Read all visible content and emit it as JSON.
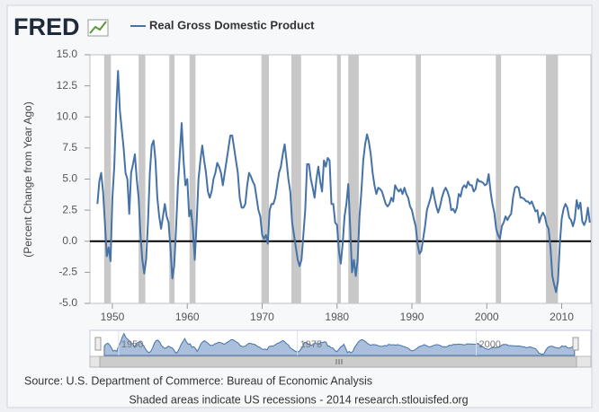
{
  "header": {
    "logo": "FRED"
  },
  "chart_data": {
    "type": "line",
    "ylabel": "(Percent Change from Year Ago)",
    "xlim": [
      1947,
      2013.9
    ],
    "ylim": [
      -5,
      15
    ],
    "yticks": [
      {
        "value": 15,
        "label": "15.0"
      },
      {
        "value": 12.5,
        "label": "12.5"
      },
      {
        "value": 10,
        "label": "10.0"
      },
      {
        "value": 7.5,
        "label": "7.5"
      },
      {
        "value": 5,
        "label": "5.0"
      },
      {
        "value": 2.5,
        "label": "2.5"
      },
      {
        "value": 0,
        "label": "0.0"
      },
      {
        "value": -2.5,
        "label": "-2.5"
      },
      {
        "value": -5,
        "label": "-5.0"
      }
    ],
    "xticks": [
      1950,
      1960,
      1970,
      1980,
      1990,
      2000,
      2010
    ],
    "grid": false,
    "recessions": [
      [
        1948.9,
        1949.8
      ],
      [
        1953.5,
        1954.4
      ],
      [
        1957.6,
        1958.3
      ],
      [
        1960.3,
        1961.1
      ],
      [
        1969.9,
        1970.9
      ],
      [
        1973.9,
        1975.2
      ],
      [
        1980.0,
        1980.5
      ],
      [
        1981.5,
        1982.9
      ],
      [
        1990.5,
        1991.2
      ],
      [
        2001.2,
        2001.9
      ],
      [
        2007.9,
        2009.5
      ]
    ],
    "x": [
      1948,
      1948.25,
      1948.5,
      1948.75,
      1949,
      1949.25,
      1949.5,
      1949.75,
      1950,
      1950.25,
      1950.5,
      1950.75,
      1951,
      1951.25,
      1951.5,
      1951.75,
      1952,
      1952.25,
      1952.5,
      1952.75,
      1953,
      1953.25,
      1953.5,
      1953.75,
      1954,
      1954.25,
      1954.5,
      1954.75,
      1955,
      1955.25,
      1955.5,
      1955.75,
      1956,
      1956.25,
      1956.5,
      1956.75,
      1957,
      1957.25,
      1957.5,
      1957.75,
      1958,
      1958.25,
      1958.5,
      1958.75,
      1959,
      1959.25,
      1959.5,
      1959.75,
      1960,
      1960.25,
      1960.5,
      1960.75,
      1961,
      1961.25,
      1961.5,
      1961.75,
      1962,
      1962.25,
      1962.5,
      1962.75,
      1963,
      1963.25,
      1963.5,
      1963.75,
      1964,
      1964.25,
      1964.5,
      1964.75,
      1965,
      1965.25,
      1965.5,
      1965.75,
      1966,
      1966.25,
      1966.5,
      1966.75,
      1967,
      1967.25,
      1967.5,
      1967.75,
      1968,
      1968.25,
      1968.5,
      1968.75,
      1969,
      1969.25,
      1969.5,
      1969.75,
      1970,
      1970.25,
      1970.5,
      1970.75,
      1971,
      1971.25,
      1971.5,
      1971.75,
      1972,
      1972.25,
      1972.5,
      1972.75,
      1973,
      1973.25,
      1973.5,
      1973.75,
      1974,
      1974.25,
      1974.5,
      1974.75,
      1975,
      1975.25,
      1975.5,
      1975.75,
      1976,
      1976.25,
      1976.5,
      1976.75,
      1977,
      1977.25,
      1977.5,
      1977.75,
      1978,
      1978.25,
      1978.5,
      1978.75,
      1979,
      1979.25,
      1979.5,
      1979.75,
      1980,
      1980.25,
      1980.5,
      1980.75,
      1981,
      1981.25,
      1981.5,
      1981.75,
      1982,
      1982.25,
      1982.5,
      1982.75,
      1983,
      1983.25,
      1983.5,
      1983.75,
      1984,
      1984.25,
      1984.5,
      1984.75,
      1985,
      1985.25,
      1985.5,
      1985.75,
      1986,
      1986.25,
      1986.5,
      1986.75,
      1987,
      1987.25,
      1987.5,
      1987.75,
      1988,
      1988.25,
      1988.5,
      1988.75,
      1989,
      1989.25,
      1989.5,
      1989.75,
      1990,
      1990.25,
      1990.5,
      1990.75,
      1991,
      1991.25,
      1991.5,
      1991.75,
      1992,
      1992.25,
      1992.5,
      1992.75,
      1993,
      1993.25,
      1993.5,
      1993.75,
      1994,
      1994.25,
      1994.5,
      1994.75,
      1995,
      1995.25,
      1995.5,
      1995.75,
      1996,
      1996.25,
      1996.5,
      1996.75,
      1997,
      1997.25,
      1997.5,
      1997.75,
      1998,
      1998.25,
      1998.5,
      1998.75,
      1999,
      1999.25,
      1999.5,
      1999.75,
      2000,
      2000.25,
      2000.5,
      2000.75,
      2001,
      2001.25,
      2001.5,
      2001.75,
      2002,
      2002.25,
      2002.5,
      2002.75,
      2003,
      2003.25,
      2003.5,
      2003.75,
      2004,
      2004.25,
      2004.5,
      2004.75,
      2005,
      2005.25,
      2005.5,
      2005.75,
      2006,
      2006.25,
      2006.5,
      2006.75,
      2007,
      2007.25,
      2007.5,
      2007.75,
      2008,
      2008.25,
      2008.5,
      2008.75,
      2009,
      2009.25,
      2009.5,
      2009.75,
      2010,
      2010.25,
      2010.5,
      2010.75,
      2011,
      2011.25,
      2011.5,
      2011.75,
      2012,
      2012.25,
      2012.5,
      2012.75,
      2013,
      2013.25,
      2013.5,
      2013.75
    ],
    "series": [
      {
        "name": "Real Gross Domestic Product",
        "color": "#4572a7",
        "values": [
          3.0,
          4.8,
          5.5,
          4.0,
          1.5,
          -1.2,
          -0.5,
          -1.6,
          3.5,
          6.0,
          10.5,
          13.7,
          10.5,
          9.0,
          7.5,
          5.5,
          5.0,
          2.2,
          5.5,
          6.2,
          7.0,
          5.0,
          3.5,
          0.5,
          -1.5,
          -2.6,
          -1.5,
          1.5,
          5.5,
          7.7,
          8.1,
          6.5,
          3.5,
          2.0,
          1.0,
          2.0,
          3.0,
          2.0,
          1.5,
          -0.5,
          -3.0,
          -2.0,
          1.0,
          4.5,
          7.0,
          9.5,
          6.5,
          4.5,
          5.0,
          2.0,
          2.5,
          1.0,
          -1.5,
          1.5,
          5.0,
          6.5,
          7.7,
          6.5,
          5.5,
          4.0,
          3.5,
          4.0,
          5.0,
          5.5,
          6.3,
          6.0,
          5.5,
          4.5,
          5.5,
          6.5,
          7.5,
          8.5,
          8.5,
          7.5,
          6.5,
          5.5,
          3.5,
          2.7,
          2.7,
          3.0,
          4.5,
          5.5,
          5.2,
          4.8,
          4.5,
          3.5,
          2.5,
          2.0,
          0.5,
          0.2,
          0.5,
          -0.2,
          2.5,
          3.0,
          3.0,
          3.5,
          4.5,
          5.5,
          6.0,
          7.0,
          7.8,
          6.5,
          5.0,
          4.0,
          1.5,
          0.5,
          -0.5,
          -1.5,
          -2.0,
          -1.5,
          0.5,
          2.5,
          6.2,
          6.2,
          5.0,
          4.3,
          3.5,
          5.0,
          6.0,
          4.8,
          4.0,
          6.5,
          6.0,
          6.7,
          6.5,
          3.0,
          3.0,
          1.5,
          1.3,
          -0.8,
          -1.8,
          -0.2,
          2.0,
          3.0,
          4.6,
          1.2,
          -2.5,
          -1.5,
          -2.8,
          -1.5,
          2.0,
          4.0,
          6.5,
          7.8,
          8.6,
          8.0,
          7.0,
          5.5,
          4.5,
          3.8,
          4.3,
          4.2,
          4.0,
          3.5,
          3.0,
          2.8,
          3.0,
          3.5,
          3.2,
          4.5,
          4.2,
          4.0,
          4.2,
          3.8,
          4.3,
          3.8,
          3.5,
          2.8,
          2.5,
          1.8,
          1.2,
          -0.2,
          -1.0,
          -0.8,
          0.2,
          1.2,
          2.5,
          3.0,
          3.5,
          4.3,
          3.5,
          2.8,
          2.3,
          2.8,
          3.5,
          4.0,
          4.3,
          4.0,
          3.5,
          2.5,
          2.6,
          2.3,
          2.7,
          3.8,
          3.6,
          4.3,
          4.5,
          4.3,
          4.8,
          4.5,
          4.5,
          4.0,
          4.2,
          5.0,
          4.8,
          4.8,
          4.7,
          4.5,
          4.6,
          5.4,
          4.0,
          3.0,
          2.3,
          1.0,
          0.5,
          0.2,
          1.2,
          1.5,
          2.0,
          1.7,
          2.0,
          2.2,
          3.5,
          4.3,
          4.4,
          4.3,
          3.5,
          3.5,
          3.4,
          3.2,
          3.2,
          3.0,
          3.2,
          2.8,
          2.4,
          2.5,
          1.5,
          2.0,
          2.3,
          2.0,
          1.3,
          1.0,
          -0.5,
          -2.8,
          -3.5,
          -4.1,
          -3.2,
          -0.2,
          1.8,
          2.6,
          3.0,
          2.7,
          1.9,
          1.7,
          1.2,
          1.8,
          3.3,
          2.6,
          3.1,
          1.6,
          1.3,
          1.7,
          2.7,
          1.5
        ]
      }
    ],
    "navigator": {
      "xticks": [
        1950,
        1975,
        2000
      ]
    }
  },
  "footer": {
    "source": "Source: U.S. Department of Commerce: Bureau of Economic Analysis",
    "note": "Shaded areas indicate US recessions - 2014 research.stlouisfed.org"
  }
}
